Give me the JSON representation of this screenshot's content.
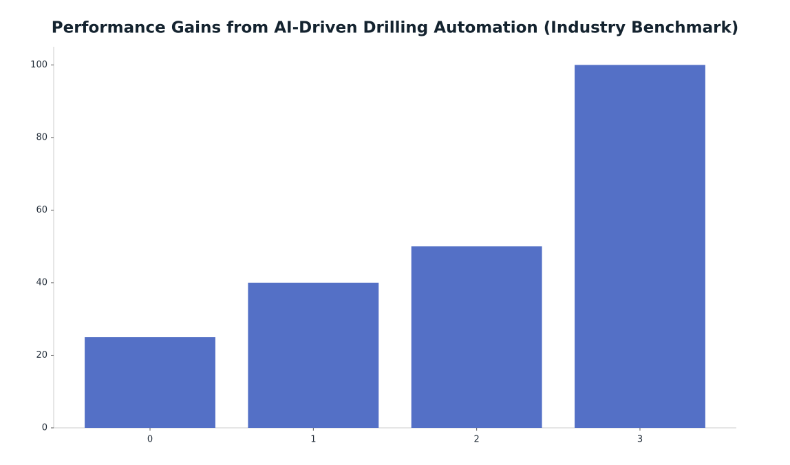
{
  "chart_data": {
    "type": "bar",
    "title": "Performance Gains from AI-Driven Drilling Automation (Industry Benchmark)",
    "categories": [
      "0",
      "1",
      "2",
      "3"
    ],
    "values": [
      25,
      40,
      50,
      100
    ],
    "color": "#5470c6",
    "ylim": [
      0,
      105
    ],
    "yticks": [
      0,
      20,
      40,
      60,
      80,
      100
    ]
  }
}
